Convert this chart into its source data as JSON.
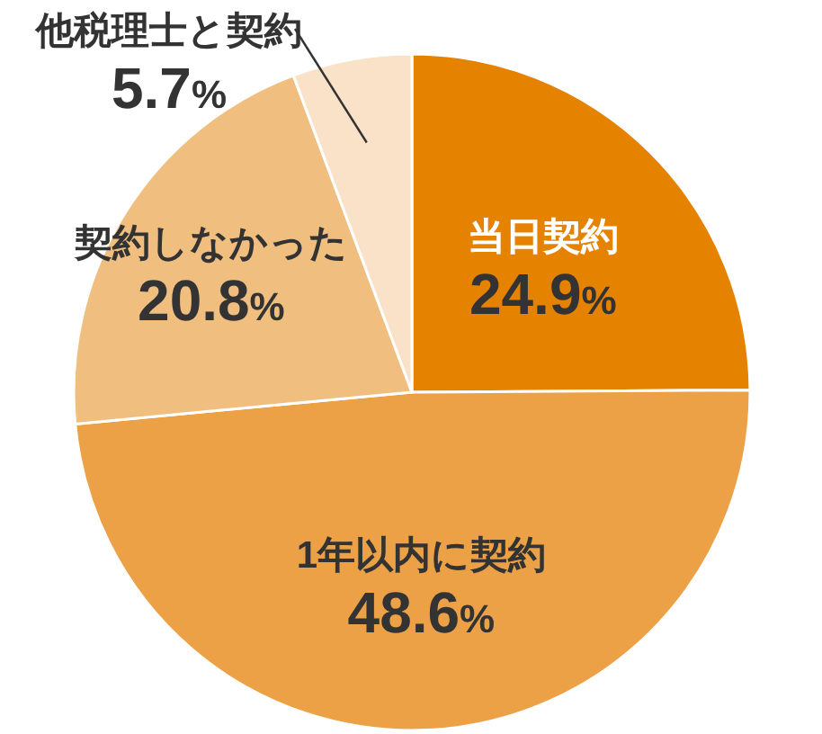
{
  "chart_data": {
    "type": "pie",
    "categories": [
      "当日契約",
      "1年以内に契約",
      "契約しなかった",
      "他税理士と契約"
    ],
    "values": [
      24.9,
      48.6,
      20.8,
      5.7
    ],
    "value_labels": [
      "24.9%",
      "48.6%",
      "20.8%",
      "5.7%"
    ],
    "colors": [
      "#e58200",
      "#eca147",
      "#f0bf80",
      "#fae2c8"
    ]
  }
}
